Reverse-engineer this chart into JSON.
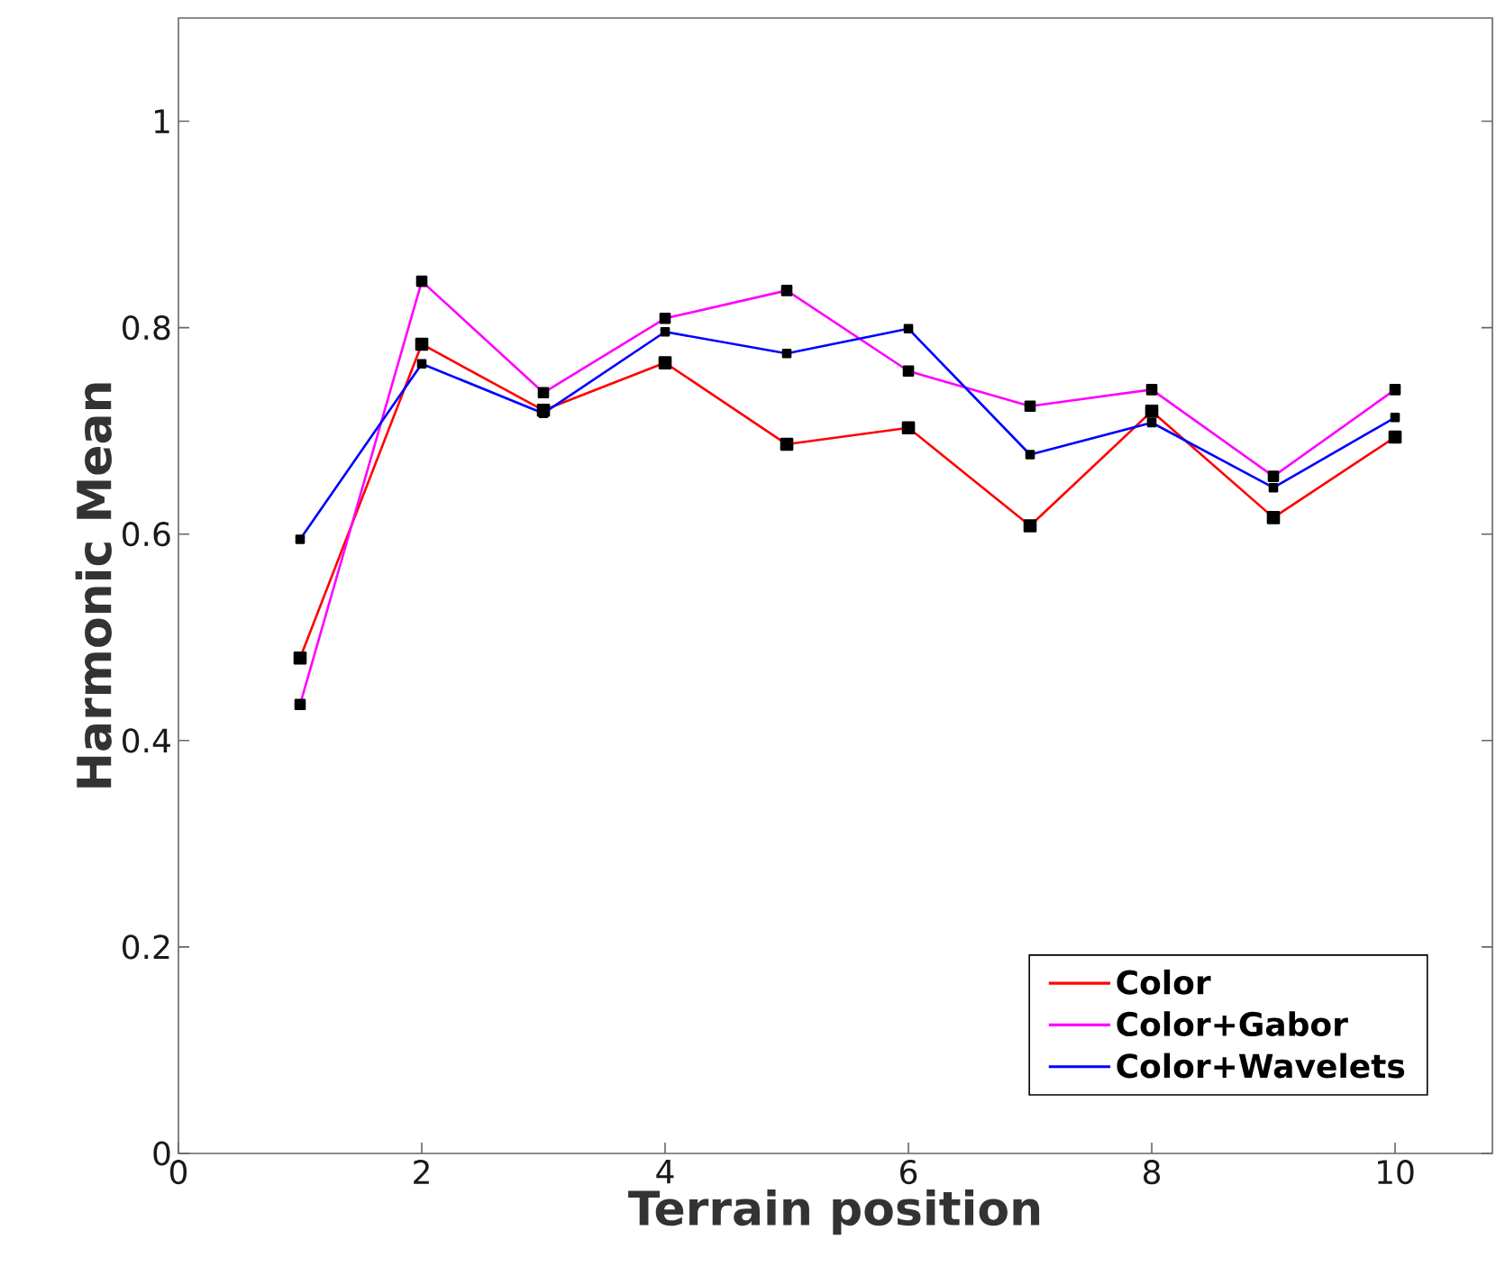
{
  "chart_data": {
    "type": "line",
    "xlabel": "Terrain position",
    "ylabel": "Harmonic Mean",
    "x": [
      1,
      2,
      3,
      4,
      5,
      6,
      7,
      8,
      9,
      10
    ],
    "series": [
      {
        "name": "Color",
        "color": "#ff0000",
        "values": [
          0.48,
          0.784,
          0.72,
          0.766,
          0.687,
          0.703,
          0.608,
          0.719,
          0.616,
          0.694
        ]
      },
      {
        "name": "Color+Gabor",
        "color": "#ff00ff",
        "values": [
          0.435,
          0.845,
          0.737,
          0.809,
          0.836,
          0.758,
          0.724,
          0.74,
          0.656,
          0.74
        ]
      },
      {
        "name": "Color+Wavelets",
        "color": "#0000ff",
        "values": [
          0.595,
          0.765,
          0.717,
          0.796,
          0.775,
          0.799,
          0.677,
          0.708,
          0.645,
          0.713
        ]
      }
    ],
    "xlim": [
      0,
      10.8
    ],
    "ylim": [
      0,
      1.1
    ],
    "xticks": [
      0,
      2,
      4,
      6,
      8,
      10
    ],
    "yticks": [
      0,
      0.2,
      0.4,
      0.6,
      0.8,
      1
    ],
    "legend": "bottom right",
    "marker": "square",
    "line_style": "solid",
    "grid": false
  }
}
